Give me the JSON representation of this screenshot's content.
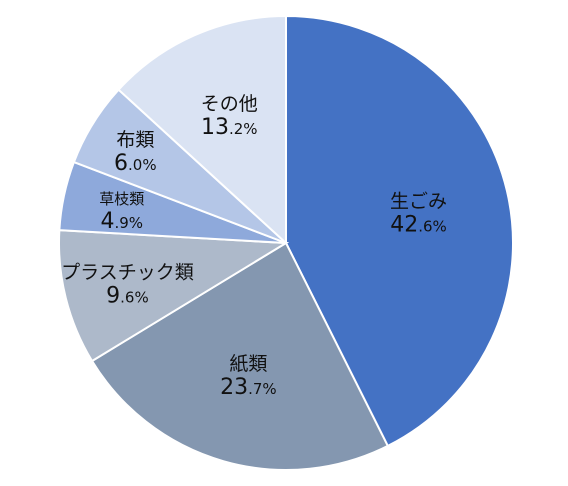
{
  "chart_data": {
    "type": "pie",
    "title": "",
    "start_angle_deg": 0,
    "direction": "clockwise",
    "legend": "none",
    "slices": [
      {
        "label": "生ごみ",
        "value": 42.6,
        "value_major": "42",
        "value_minor": ".6%",
        "color": "#4472C4"
      },
      {
        "label": "紙類",
        "value": 23.7,
        "value_major": "23",
        "value_minor": ".7%",
        "color": "#8497B0"
      },
      {
        "label": "プラスチック類",
        "value": 9.6,
        "value_major": "9",
        "value_minor": ".6%",
        "color": "#ADB9CA"
      },
      {
        "label": "草枝類",
        "value": 4.9,
        "value_major": "4",
        "value_minor": ".9%",
        "color": "#8EA9DB"
      },
      {
        "label": "布類",
        "value": 6.0,
        "value_major": "6",
        "value_minor": ".0%",
        "color": "#B4C6E7"
      },
      {
        "label": "その他",
        "value": 13.2,
        "value_major": "13",
        "value_minor": ".2%",
        "color": "#DAE3F3"
      }
    ]
  }
}
